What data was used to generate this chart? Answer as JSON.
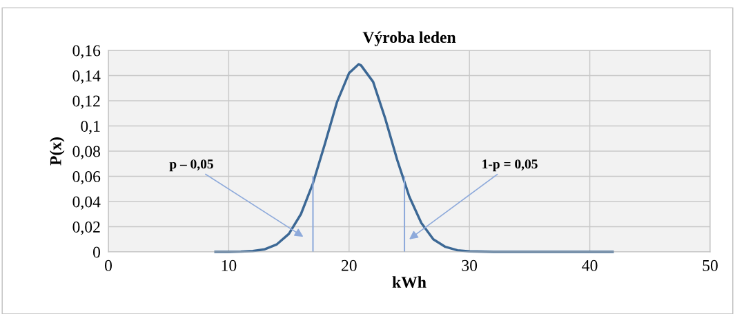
{
  "chart_data": {
    "type": "line",
    "title": "Výroba leden",
    "xlabel": "kWh",
    "ylabel": "P(x)",
    "series": [
      {
        "color": "#3c6895",
        "x": [
          8.8,
          10,
          11,
          12,
          13,
          14,
          15,
          16,
          17,
          18,
          19,
          20,
          20.8,
          21,
          22,
          23,
          24,
          25,
          26,
          27,
          28,
          29,
          30,
          32,
          35,
          42
        ],
        "values": [
          0,
          0,
          0.0002,
          0.0007,
          0.0021,
          0.006,
          0.0143,
          0.03,
          0.0545,
          0.086,
          0.119,
          0.142,
          0.149,
          0.148,
          0.135,
          0.106,
          0.073,
          0.044,
          0.023,
          0.01,
          0.004,
          0.0013,
          0.0004,
          0,
          0,
          0
        ]
      },
      {
        "color": "#8eaadb",
        "x": [
          17,
          17
        ],
        "values": [
          0,
          0.06
        ]
      },
      {
        "color": "#8eaadb",
        "x": [
          24.6,
          24.6
        ],
        "values": [
          0,
          0.06
        ]
      }
    ],
    "annotations": [
      "p – 0,05",
      "1-p = 0,05"
    ],
    "xlim": [
      0,
      50
    ],
    "xticks": [
      0,
      10,
      20,
      30,
      40,
      50
    ],
    "ylim": [
      0,
      0.16
    ],
    "yticks": [
      {
        "value": 0,
        "label": "0"
      },
      {
        "value": 0.02,
        "label": "0,02"
      },
      {
        "value": 0.04,
        "label": "0,04"
      },
      {
        "value": 0.06,
        "label": "0,06"
      },
      {
        "value": 0.08,
        "label": "0,08"
      },
      {
        "value": 0.1,
        "label": "0,1"
      },
      {
        "value": 0.12,
        "label": "0,12"
      },
      {
        "value": 0.14,
        "label": "0,14"
      },
      {
        "value": 0.16,
        "label": "0,16"
      }
    ],
    "grid": true,
    "legend": false
  }
}
